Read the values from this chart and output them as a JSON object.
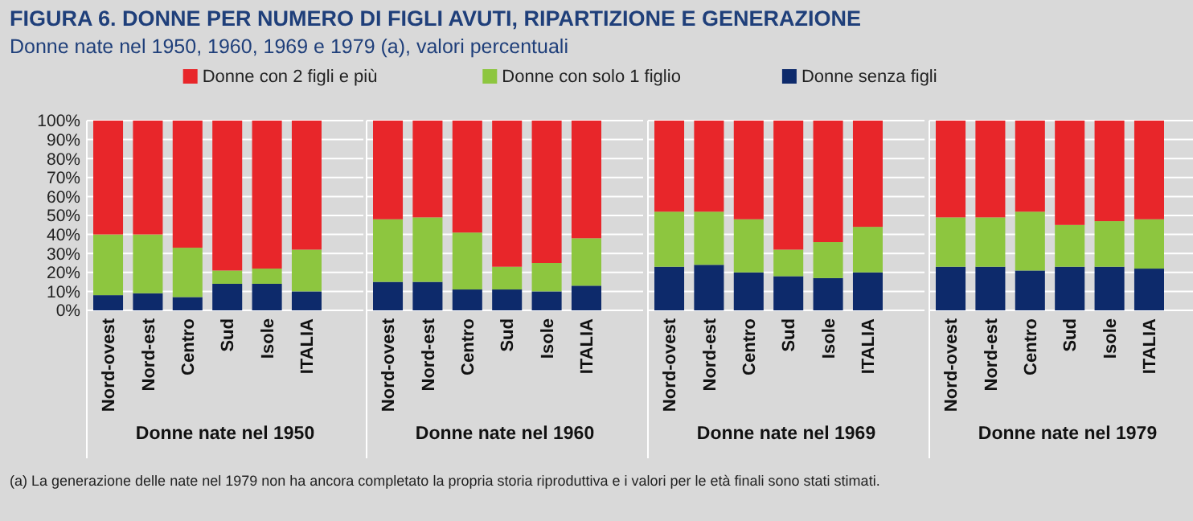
{
  "chart_data": [
    {
      "type": "bar",
      "title": "FIGURA 6. DONNE PER NUMERO DI FIGLI AVUTI, RIPARTIZIONE E GENERAZIONE",
      "subtitle": "Donne nate nel 1950, 1960, 1969  e 1979 (a), valori percentuali",
      "xlabel": "Donne nate nel 1950",
      "annotations": [
        "(a) La generazione delle nate nel 1979 non ha ancora completato la propria storia riproduttiva e i valori per le età finali sono stati stimati."
      ],
      "categories": [
        "Nord-ovest",
        "Nord-est",
        "Centro",
        "Sud",
        "Isole",
        "ITALIA"
      ],
      "stacked": true,
      "legend": "top",
      "grid": "y",
      "ylim": [
        0,
        100
      ],
      "yticks": [
        {
          "value": 0,
          "label": "0%"
        },
        {
          "value": 10,
          "label": "10%"
        },
        {
          "value": 20,
          "label": "20%"
        },
        {
          "value": 30,
          "label": "30%"
        },
        {
          "value": 40,
          "label": "40%"
        },
        {
          "value": 50,
          "label": "50%"
        },
        {
          "value": 60,
          "label": "60%"
        },
        {
          "value": 70,
          "label": "70%"
        },
        {
          "value": 80,
          "label": "80%"
        },
        {
          "value": 90,
          "label": "90%"
        },
        {
          "value": 100,
          "label": "100%"
        }
      ],
      "series": [
        {
          "name": "Donne senza figli",
          "color": "#0d2a6b",
          "values": [
            8,
            9,
            7,
            14,
            14,
            10
          ]
        },
        {
          "name": "Donne con solo 1 figlio",
          "color": "#8dc63f",
          "values": [
            32,
            31,
            26,
            7,
            8,
            22
          ]
        },
        {
          "name": "Donne con 2 figli e più",
          "color": "#e8262a",
          "values": [
            60,
            60,
            67,
            79,
            78,
            68
          ]
        }
      ]
    },
    {
      "type": "bar",
      "xlabel": "Donne nate nel 1960",
      "categories": [
        "Nord-ovest",
        "Nord-est",
        "Centro",
        "Sud",
        "Isole",
        "ITALIA"
      ],
      "stacked": true,
      "grid": "y",
      "tick_labels": "x",
      "ylim": [
        0,
        100
      ],
      "yticks": [
        0,
        10,
        20,
        30,
        40,
        50,
        60,
        70,
        80,
        90,
        100
      ],
      "series": [
        {
          "color": "#0d2a6b",
          "values": [
            15,
            15,
            11,
            11,
            10,
            13
          ]
        },
        {
          "color": "#8dc63f",
          "values": [
            33,
            34,
            30,
            12,
            15,
            25
          ]
        },
        {
          "color": "#e8262a",
          "values": [
            52,
            51,
            59,
            77,
            75,
            62
          ]
        }
      ]
    },
    {
      "type": "bar",
      "xlabel": "Donne nate nel 1969",
      "categories": [
        "Nord-ovest",
        "Nord-est",
        "Centro",
        "Sud",
        "Isole",
        "ITALIA"
      ],
      "stacked": true,
      "grid": "y",
      "tick_labels": "x",
      "ylim": [
        0,
        100
      ],
      "yticks": [
        0,
        10,
        20,
        30,
        40,
        50,
        60,
        70,
        80,
        90,
        100
      ],
      "series": [
        {
          "color": "#0d2a6b",
          "values": [
            23,
            24,
            20,
            18,
            17,
            20
          ]
        },
        {
          "color": "#8dc63f",
          "values": [
            29,
            28,
            28,
            14,
            19,
            24
          ]
        },
        {
          "color": "#e8262a",
          "values": [
            48,
            48,
            52,
            68,
            64,
            56
          ]
        }
      ]
    },
    {
      "type": "bar",
      "xlabel": "Donne nate nel 1979",
      "categories": [
        "Nord-ovest",
        "Nord-est",
        "Centro",
        "Sud",
        "Isole",
        "ITALIA"
      ],
      "stacked": true,
      "grid": "y",
      "tick_labels": "x",
      "ylim": [
        0,
        100
      ],
      "yticks": [
        0,
        10,
        20,
        30,
        40,
        50,
        60,
        70,
        80,
        90,
        100
      ],
      "series": [
        {
          "color": "#0d2a6b",
          "values": [
            23,
            23,
            21,
            23,
            23,
            22
          ]
        },
        {
          "color": "#8dc63f",
          "values": [
            26,
            26,
            31,
            22,
            24,
            26
          ]
        },
        {
          "color": "#e8262a",
          "values": [
            51,
            51,
            48,
            55,
            53,
            52
          ]
        }
      ]
    }
  ]
}
